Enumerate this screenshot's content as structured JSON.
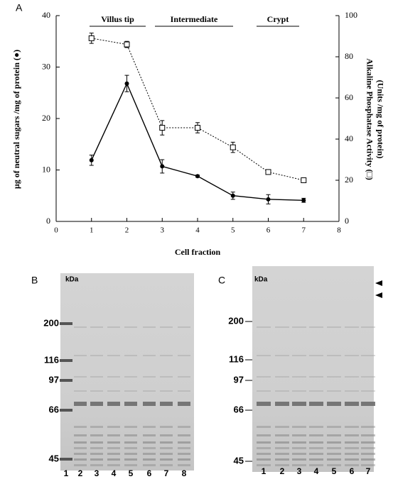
{
  "chart_data": {
    "type": "line",
    "panel_label": "A",
    "x_label": "Cell fraction",
    "y_label": "µg of neutral sugars /mg of protein (●)",
    "y2_label": [
      "Alkaline Phosphatase Activity (□)",
      "(Units /mg of protein)"
    ],
    "regions": [
      "Villus tip",
      "Intermediate",
      "Crypt"
    ],
    "x": [
      1,
      2,
      3,
      4,
      5,
      6,
      7
    ],
    "xlim": [
      0,
      8
    ],
    "xticks": [
      0,
      1,
      2,
      3,
      4,
      5,
      6,
      7,
      8
    ],
    "ylim": [
      0,
      40
    ],
    "yticks": [
      0,
      10,
      20,
      30,
      40
    ],
    "y2lim": [
      0,
      100
    ],
    "y2ticks": [
      0,
      20,
      40,
      60,
      80,
      100
    ],
    "series": [
      {
        "color": "#000000",
        "marker": "circle",
        "style": "solid",
        "values": [
          11.9,
          26.8,
          10.7,
          8.8,
          5.0,
          4.3,
          4.1
        ],
        "errors": [
          1.0,
          1.6,
          1.3,
          0.2,
          0.7,
          0.9,
          0.4
        ]
      },
      {
        "color": "#000000",
        "marker": "square",
        "style": "dotted",
        "axis": "y2",
        "values": [
          89,
          86,
          45.5,
          45.5,
          36,
          24,
          20
        ],
        "errors": [
          2.5,
          1.5,
          3.5,
          2.5,
          2.5,
          1,
          1
        ]
      }
    ]
  },
  "panel_b": {
    "label": "B",
    "unit": "kDa",
    "markers": [
      "200",
      "116",
      "97",
      "66",
      "45"
    ],
    "lanes": [
      "1",
      "2",
      "3",
      "4",
      "5",
      "6",
      "7",
      "8"
    ]
  },
  "panel_c": {
    "label": "C",
    "unit": "kDa",
    "markers": [
      "200",
      "116",
      "97",
      "66",
      "45"
    ],
    "lanes": [
      "1",
      "2",
      "3",
      "4",
      "5",
      "6",
      "7"
    ]
  }
}
